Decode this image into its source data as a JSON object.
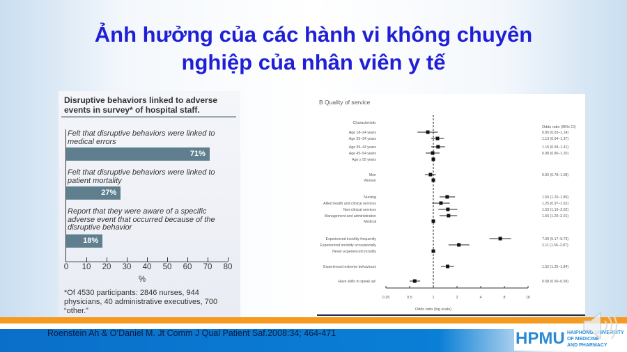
{
  "slide": {
    "title_line1": "Ảnh hưởng của các hành vi không chuyên",
    "title_line2": "nghiệp của nhân viên y tế",
    "citation": "Roenstein Ah & O’Daniel M. Jt Comm J Qual Patient Saf.2008:34; 464-471",
    "logo": {
      "big": "HPMU",
      "line1": "HAIPHONG UNIVERSITY",
      "line2": "OF MEDICINE",
      "line3": "AND PHARMACY"
    },
    "colors": {
      "title": "#1f1fd6",
      "orange_stripe": "#f59a1e",
      "footer_blue": "#0a7fd6",
      "bar": "#5f7f8e"
    },
    "icons": [
      "speaker-icon"
    ]
  },
  "chart_data": [
    {
      "type": "bar",
      "orientation": "horizontal",
      "title": "Disruptive behaviors linked to adverse events in survey* of hospital staff.",
      "categories": [
        "Felt that disruptive behaviors were linked to medical errors",
        "Felt that disruptive behaviors were linked to patient mortality",
        "Report that they were aware of a specific adverse event that occurred because of the disruptive behavior"
      ],
      "values": [
        71,
        27,
        18
      ],
      "data_labels": [
        "71%",
        "27%",
        "18%"
      ],
      "xlabel": "%",
      "xlim": [
        0,
        80
      ],
      "xticks": [
        "0",
        "10",
        "20",
        "30",
        "40",
        "50",
        "60",
        "70",
        "80"
      ],
      "footnote": "*Of 4530 participants: 2846 nurses, 944 physicians, 40 administrative executives, 700 “other.”"
    },
    {
      "type": "forest",
      "title": "B  Quality of service",
      "column_header_left": "Characteristic",
      "column_header_right": "Odds ratio (95% CI)",
      "xlabel": "Odds ratio (log scale)",
      "xscale": "log2",
      "xlim": [
        0.25,
        16
      ],
      "xticks": [
        "0.25",
        "0.5",
        "1",
        "2",
        "4",
        "8",
        "16"
      ],
      "reference_line": 1,
      "rows": [
        {
          "label": "Age 18–24 years",
          "or": 0.85,
          "lo": 0.63,
          "hi": 1.14,
          "text": "0.85 (0.63–1.14)"
        },
        {
          "label": "Age 25–34 years",
          "or": 1.13,
          "lo": 0.94,
          "hi": 1.37,
          "text": "1.13 (0.94–1.37)"
        },
        {
          "label": "Age 35–44 years",
          "or": 1.15,
          "lo": 0.94,
          "hi": 1.41,
          "text": "1.15 (0.94–1.41)"
        },
        {
          "label": "Age 45–54 years",
          "or": 0.98,
          "lo": 0.8,
          "hi": 1.2,
          "text": "0.98 (0.80–1.20)"
        },
        {
          "label": "Age ≥ 55 years",
          "or": 1,
          "text": ""
        },
        {
          "label": "Men",
          "or": 0.92,
          "lo": 0.78,
          "hi": 1.08,
          "text": "0.92 (0.78–1.08)"
        },
        {
          "label": "Women",
          "or": 1,
          "text": ""
        },
        {
          "label": "Nursing",
          "or": 1.5,
          "lo": 1.2,
          "hi": 1.89,
          "text": "1.50 (1.20–1.89)"
        },
        {
          "label": "Allied health and clinical services",
          "or": 1.25,
          "lo": 0.97,
          "hi": 1.62,
          "text": "1.25 (0.97–1.62)"
        },
        {
          "label": "Non-clinical services",
          "or": 1.53,
          "lo": 1.16,
          "hi": 2.02,
          "text": "1.53 (1.16–2.02)"
        },
        {
          "label": "Management and administration",
          "or": 1.56,
          "lo": 1.2,
          "hi": 2.01,
          "text": "1.56 (1.20–2.01)"
        },
        {
          "label": "Medical",
          "or": 1,
          "text": ""
        },
        {
          "label": "Experienced incivility frequently",
          "or": 7.09,
          "lo": 5.17,
          "hi": 9.73,
          "text": "7.09 (5.17–9.73)"
        },
        {
          "label": "Experienced incivility occassionally",
          "or": 2.11,
          "lo": 1.56,
          "hi": 2.87,
          "text": "2.11 (1.56–2.87)"
        },
        {
          "label": "Never experienced incivility",
          "or": 1,
          "text": ""
        },
        {
          "label": "Experienced extreme behaviours",
          "or": 1.52,
          "lo": 1.25,
          "hi": 1.84,
          "text": "1.52 (1.25–1.84)"
        },
        {
          "label": "Have skills to speak up¹",
          "or": 0.58,
          "lo": 0.5,
          "hi": 0.68,
          "text": "0.58 (0.50–0.68)"
        }
      ]
    }
  ]
}
